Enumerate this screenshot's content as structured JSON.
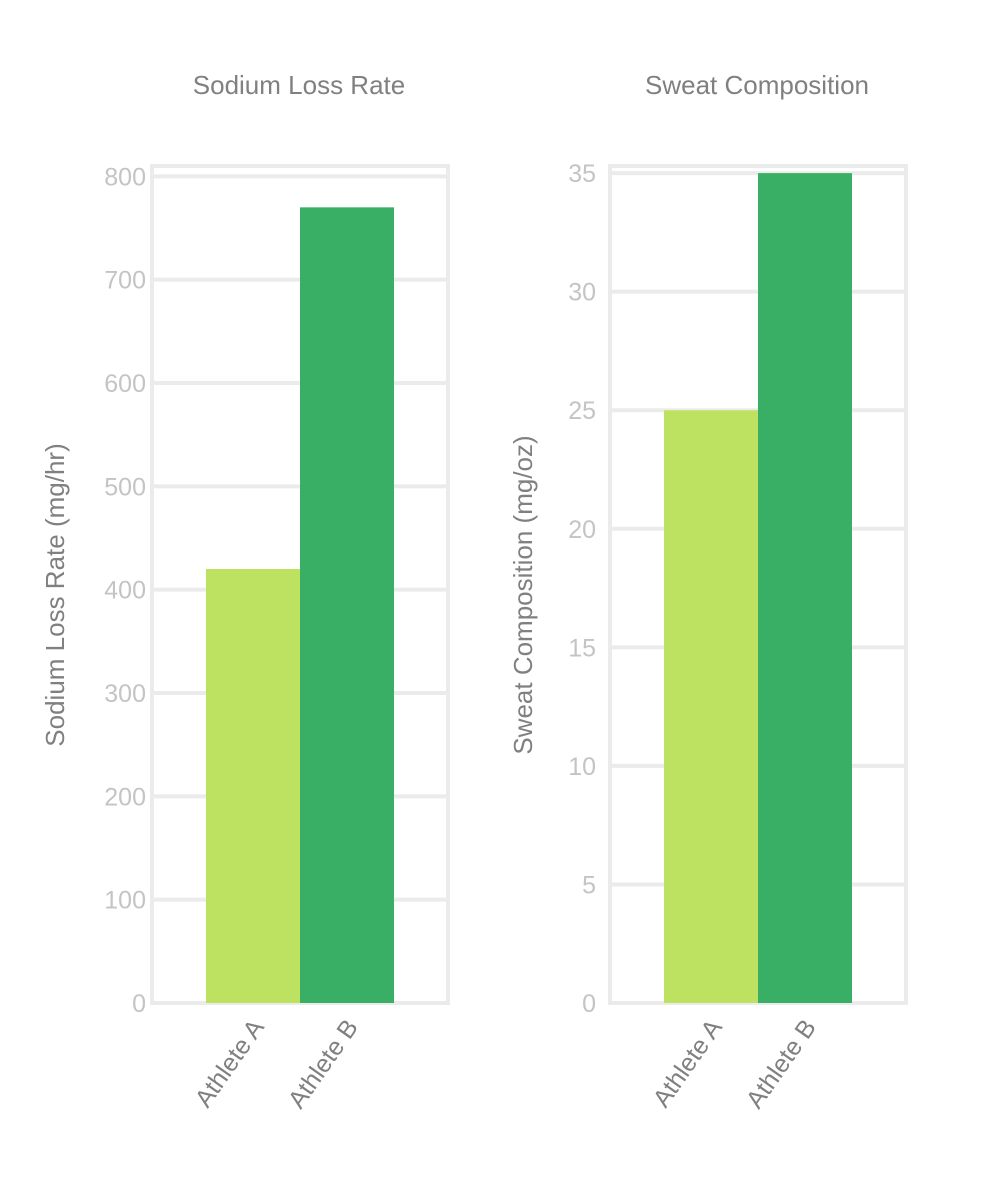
{
  "chart_data": [
    {
      "type": "bar",
      "title": "Sodium Loss Rate",
      "xlabel": "",
      "ylabel": "Sodium Loss Rate (mg/hr)",
      "categories": [
        "Athlete A",
        "Athlete B"
      ],
      "values": [
        420,
        770
      ],
      "ylim": [
        0,
        810
      ],
      "yticks": [
        "0",
        "100",
        "200",
        "300",
        "400",
        "500",
        "600",
        "700",
        "800"
      ],
      "colors": [
        "#bde262",
        "#39af66"
      ],
      "grid": true,
      "legend": "none"
    },
    {
      "type": "bar",
      "title": "Sweat Composition",
      "xlabel": "",
      "ylabel": "Sweat Composition (mg/oz)",
      "categories": [
        "Athlete A",
        "Athlete B"
      ],
      "values": [
        25,
        35
      ],
      "ylim": [
        0,
        35.3
      ],
      "yticks": [
        "0",
        "5",
        "10",
        "15",
        "20",
        "25",
        "30",
        "35"
      ],
      "colors": [
        "#bde262",
        "#39af66"
      ],
      "grid": true,
      "legend": "none"
    }
  ]
}
